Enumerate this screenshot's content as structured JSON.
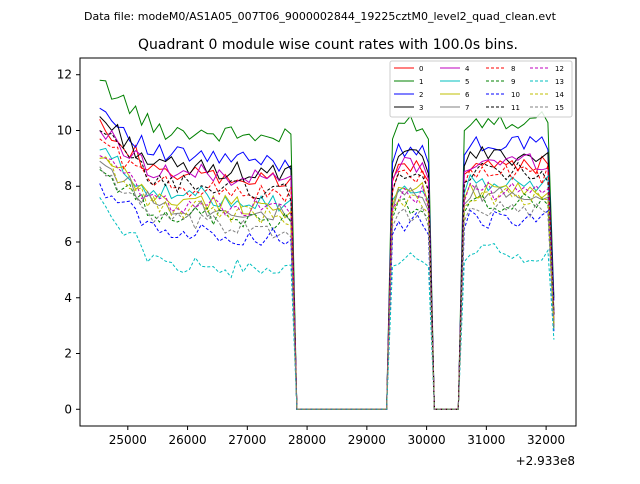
{
  "chart_data": {
    "type": "line",
    "suptitle": "Data file: modeM0/AS1A05_007T06_9000002844_19225cztM0_level2_quad_clean.evt",
    "title": "Quadrant 0 module wise count rates with 100.0s bins.",
    "xlabel": "",
    "ylabel": "",
    "x_offset_label": "+2.933e8",
    "xlim": [
      24200,
      32500
    ],
    "ylim": [
      -0.6,
      12.6
    ],
    "xticks": [
      25000,
      26000,
      27000,
      28000,
      29000,
      30000,
      31000,
      32000
    ],
    "yticks": [
      0,
      2,
      4,
      6,
      8,
      10,
      12
    ],
    "legend_position": "top-right",
    "segments": [
      {
        "x_start": 24530,
        "x_end": 27730
      },
      {
        "x_start": 29430,
        "x_end": 30030
      },
      {
        "x_start": 30630,
        "x_end": 32130
      }
    ],
    "gap_x": [
      27830,
      29330,
      30130,
      30530
    ],
    "series": [
      {
        "name": "0",
        "color": "#ff0000",
        "style": "solid",
        "level": 8.6,
        "peak": 10.4,
        "edge": 3.2
      },
      {
        "name": "1",
        "color": "#008000",
        "style": "solid",
        "level": 10.2,
        "peak": 11.8,
        "edge": 4.0
      },
      {
        "name": "2",
        "color": "#0000ff",
        "style": "solid",
        "level": 9.3,
        "peak": 10.8,
        "edge": 3.9
      },
      {
        "name": "3",
        "color": "#000000",
        "style": "solid",
        "level": 8.9,
        "peak": 10.5,
        "edge": 3.5
      },
      {
        "name": "4",
        "color": "#bf00bf",
        "style": "solid",
        "level": 8.7,
        "peak": 10.0,
        "edge": 3.4
      },
      {
        "name": "5",
        "color": "#00bfbf",
        "style": "solid",
        "level": 7.9,
        "peak": 9.3,
        "edge": 3.1
      },
      {
        "name": "6",
        "color": "#bfbf00",
        "style": "solid",
        "level": 7.7,
        "peak": 9.0,
        "edge": 3.0
      },
      {
        "name": "7",
        "color": "#808080",
        "style": "solid",
        "level": 7.5,
        "peak": 8.9,
        "edge": 3.0
      },
      {
        "name": "8",
        "color": "#ff0000",
        "style": "dashed",
        "level": 8.2,
        "peak": 9.7,
        "edge": 3.3
      },
      {
        "name": "9",
        "color": "#008000",
        "style": "dashed",
        "level": 7.2,
        "peak": 8.6,
        "edge": 2.9
      },
      {
        "name": "10",
        "color": "#0000ff",
        "style": "dashed",
        "level": 6.6,
        "peak": 8.1,
        "edge": 2.8
      },
      {
        "name": "11",
        "color": "#000000",
        "style": "dashed",
        "level": 8.3,
        "peak": 10.0,
        "edge": 3.4
      },
      {
        "name": "12",
        "color": "#bf00bf",
        "style": "dashed",
        "level": 7.6,
        "peak": 9.1,
        "edge": 3.0
      },
      {
        "name": "13",
        "color": "#00bfbf",
        "style": "dashed",
        "level": 5.4,
        "peak": 7.6,
        "edge": 2.5
      },
      {
        "name": "14",
        "color": "#bfbf00",
        "style": "dashed",
        "level": 7.4,
        "peak": 9.0,
        "edge": 3.0
      },
      {
        "name": "15",
        "color": "#808080",
        "style": "dashed",
        "level": 6.9,
        "peak": 8.7,
        "edge": 2.9
      }
    ]
  }
}
